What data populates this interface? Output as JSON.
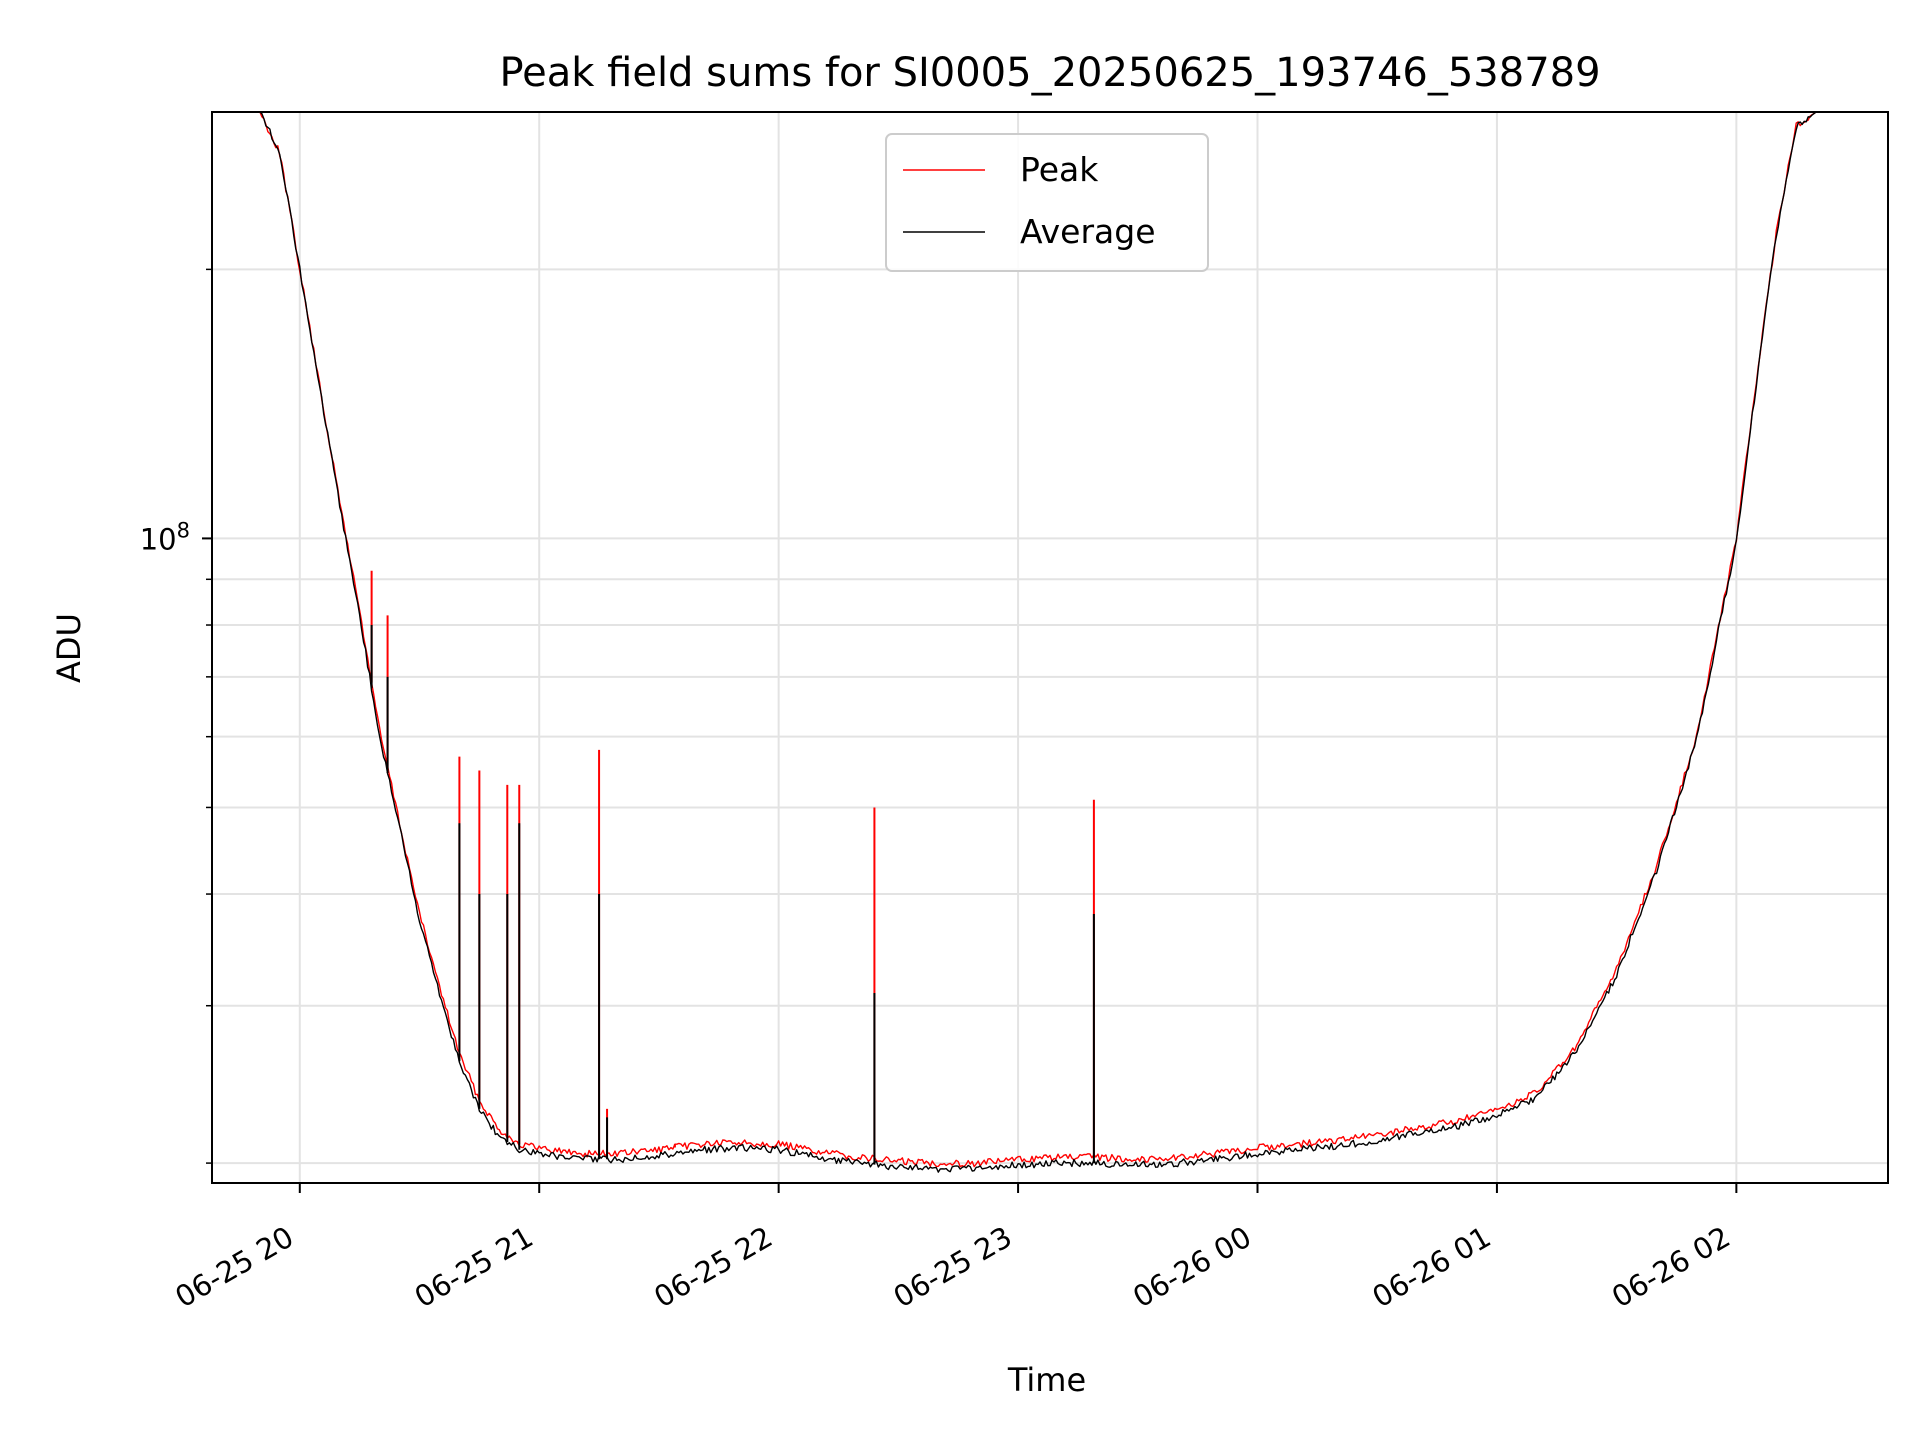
{
  "chart_data": {
    "type": "line",
    "title": "Peak field sums for SI0005_20250625_193746_538789",
    "xlabel": "Time",
    "ylabel": "ADU",
    "y_scale": "log",
    "grid": true,
    "legend_position": "upper center",
    "xlim": [
      "2025-06-25 19:38",
      "2025-06-26 02:38"
    ],
    "ylim": [
      19000000,
      300000000
    ],
    "x_ticks": [
      {
        "t": "2025-06-25 20:00",
        "label": "06-25 20"
      },
      {
        "t": "2025-06-25 21:00",
        "label": "06-25 21"
      },
      {
        "t": "2025-06-25 22:00",
        "label": "06-25 22"
      },
      {
        "t": "2025-06-25 23:00",
        "label": "06-25 23"
      },
      {
        "t": "2025-06-26 00:00",
        "label": "06-26 00"
      },
      {
        "t": "2025-06-26 01:00",
        "label": "06-26 01"
      },
      {
        "t": "2025-06-26 02:00",
        "label": "06-26 02"
      }
    ],
    "y_major_ticks": [
      {
        "value": 100000000,
        "base": "10",
        "exp": "8"
      }
    ],
    "y_minor_ticks": [
      20000000,
      30000000,
      40000000,
      50000000,
      60000000,
      70000000,
      80000000,
      90000000,
      200000000
    ],
    "series": [
      {
        "name": "Peak",
        "color": "#ff0000",
        "points": [
          [
            "2025-06-25 19:40",
            300000000
          ],
          [
            "2025-06-25 19:50",
            300000000
          ],
          [
            "2025-06-25 19:55",
            270000000
          ],
          [
            "2025-06-25 20:00",
            200000000
          ],
          [
            "2025-06-25 20:05",
            148000000
          ],
          [
            "2025-06-25 20:10",
            110000000
          ],
          [
            "2025-06-25 20:15",
            83000000
          ],
          [
            "2025-06-25 20:20",
            61000000
          ],
          [
            "2025-06-25 20:25",
            48000000
          ],
          [
            "2025-06-25 20:30",
            38000000
          ],
          [
            "2025-06-25 20:35",
            31500000
          ],
          [
            "2025-06-25 20:40",
            26500000
          ],
          [
            "2025-06-25 20:45",
            23500000
          ],
          [
            "2025-06-25 20:50",
            21800000
          ],
          [
            "2025-06-25 20:55",
            21000000
          ],
          [
            "2025-06-25 21:00",
            20800000
          ],
          [
            "2025-06-25 21:10",
            20500000
          ],
          [
            "2025-06-25 21:20",
            20500000
          ],
          [
            "2025-06-25 21:30",
            20700000
          ],
          [
            "2025-06-25 21:40",
            21000000
          ],
          [
            "2025-06-25 21:50",
            21100000
          ],
          [
            "2025-06-25 22:00",
            21000000
          ],
          [
            "2025-06-25 22:10",
            20600000
          ],
          [
            "2025-06-25 22:20",
            20300000
          ],
          [
            "2025-06-25 22:30",
            20100000
          ],
          [
            "2025-06-25 22:40",
            20000000
          ],
          [
            "2025-06-25 22:50",
            20000000
          ],
          [
            "2025-06-25 23:00",
            20200000
          ],
          [
            "2025-06-25 23:10",
            20300000
          ],
          [
            "2025-06-25 23:20",
            20300000
          ],
          [
            "2025-06-25 23:30",
            20200000
          ],
          [
            "2025-06-25 23:40",
            20300000
          ],
          [
            "2025-06-25 23:50",
            20500000
          ],
          [
            "2025-06-26 00:00",
            20800000
          ],
          [
            "2025-06-26 00:10",
            21000000
          ],
          [
            "2025-06-26 00:20",
            21200000
          ],
          [
            "2025-06-26 00:30",
            21500000
          ],
          [
            "2025-06-26 00:40",
            21900000
          ],
          [
            "2025-06-26 00:50",
            22300000
          ],
          [
            "2025-06-26 01:00",
            22900000
          ],
          [
            "2025-06-26 01:10",
            24000000
          ],
          [
            "2025-06-26 01:20",
            27000000
          ],
          [
            "2025-06-26 01:30",
            33000000
          ],
          [
            "2025-06-26 01:40",
            43000000
          ],
          [
            "2025-06-26 01:50",
            60000000
          ],
          [
            "2025-06-26 02:00",
            100000000
          ],
          [
            "2025-06-26 02:05",
            150000000
          ],
          [
            "2025-06-26 02:10",
            220000000
          ],
          [
            "2025-06-26 02:15",
            290000000
          ],
          [
            "2025-06-26 02:20",
            300000000
          ],
          [
            "2025-06-26 02:38",
            300000000
          ]
        ],
        "spikes": [
          [
            "2025-06-25 20:18",
            92000000
          ],
          [
            "2025-06-25 20:22",
            82000000
          ],
          [
            "2025-06-25 20:40",
            57000000
          ],
          [
            "2025-06-25 20:45",
            55000000
          ],
          [
            "2025-06-25 20:52",
            53000000
          ],
          [
            "2025-06-25 20:55",
            53000000
          ],
          [
            "2025-06-25 21:15",
            58000000
          ],
          [
            "2025-06-25 21:17",
            23000000
          ],
          [
            "2025-06-25 21:34",
            21000000
          ],
          [
            "2025-06-25 22:24",
            50000000
          ],
          [
            "2025-06-25 23:19",
            51000000
          ]
        ]
      },
      {
        "name": "Average",
        "color": "#000000",
        "points": [
          [
            "2025-06-25 19:40",
            300000000
          ],
          [
            "2025-06-25 19:50",
            300000000
          ],
          [
            "2025-06-25 19:55",
            270000000
          ],
          [
            "2025-06-25 20:00",
            200000000
          ],
          [
            "2025-06-25 20:05",
            147000000
          ],
          [
            "2025-06-25 20:10",
            109000000
          ],
          [
            "2025-06-25 20:15",
            82000000
          ],
          [
            "2025-06-25 20:20",
            60000000
          ],
          [
            "2025-06-25 20:25",
            47500000
          ],
          [
            "2025-06-25 20:30",
            37500000
          ],
          [
            "2025-06-25 20:35",
            31000000
          ],
          [
            "2025-06-25 20:40",
            26000000
          ],
          [
            "2025-06-25 20:45",
            23000000
          ],
          [
            "2025-06-25 20:50",
            21400000
          ],
          [
            "2025-06-25 20:55",
            20700000
          ],
          [
            "2025-06-25 21:00",
            20500000
          ],
          [
            "2025-06-25 21:10",
            20200000
          ],
          [
            "2025-06-25 21:20",
            20200000
          ],
          [
            "2025-06-25 21:30",
            20400000
          ],
          [
            "2025-06-25 21:40",
            20700000
          ],
          [
            "2025-06-25 21:50",
            20800000
          ],
          [
            "2025-06-25 22:00",
            20700000
          ],
          [
            "2025-06-25 22:10",
            20300000
          ],
          [
            "2025-06-25 22:20",
            20000000
          ],
          [
            "2025-06-25 22:30",
            19800000
          ],
          [
            "2025-06-25 22:40",
            19700000
          ],
          [
            "2025-06-25 22:50",
            19700000
          ],
          [
            "2025-06-25 23:00",
            19900000
          ],
          [
            "2025-06-25 23:10",
            20000000
          ],
          [
            "2025-06-25 23:20",
            20000000
          ],
          [
            "2025-06-25 23:30",
            19900000
          ],
          [
            "2025-06-25 23:40",
            20000000
          ],
          [
            "2025-06-25 23:50",
            20200000
          ],
          [
            "2025-06-26 00:00",
            20500000
          ],
          [
            "2025-06-26 00:10",
            20700000
          ],
          [
            "2025-06-26 00:20",
            20900000
          ],
          [
            "2025-06-26 00:30",
            21200000
          ],
          [
            "2025-06-26 00:40",
            21600000
          ],
          [
            "2025-06-26 00:50",
            22000000
          ],
          [
            "2025-06-26 01:00",
            22600000
          ],
          [
            "2025-06-26 01:10",
            23700000
          ],
          [
            "2025-06-26 01:20",
            26700000
          ],
          [
            "2025-06-26 01:30",
            32500000
          ],
          [
            "2025-06-26 01:40",
            42500000
          ],
          [
            "2025-06-26 01:50",
            59500000
          ],
          [
            "2025-06-26 02:00",
            99000000
          ],
          [
            "2025-06-26 02:05",
            149000000
          ],
          [
            "2025-06-26 02:10",
            219000000
          ],
          [
            "2025-06-26 02:15",
            289000000
          ],
          [
            "2025-06-26 02:20",
            300000000
          ],
          [
            "2025-06-26 02:38",
            300000000
          ]
        ],
        "spikes": [
          [
            "2025-06-25 20:18",
            80000000
          ],
          [
            "2025-06-25 20:22",
            70000000
          ],
          [
            "2025-06-25 20:40",
            48000000
          ],
          [
            "2025-06-25 20:45",
            40000000
          ],
          [
            "2025-06-25 20:52",
            40000000
          ],
          [
            "2025-06-25 20:55",
            48000000
          ],
          [
            "2025-06-25 21:15",
            40000000
          ],
          [
            "2025-06-25 21:17",
            22500000
          ],
          [
            "2025-06-25 22:24",
            31000000
          ],
          [
            "2025-06-25 23:19",
            38000000
          ]
        ]
      }
    ]
  }
}
